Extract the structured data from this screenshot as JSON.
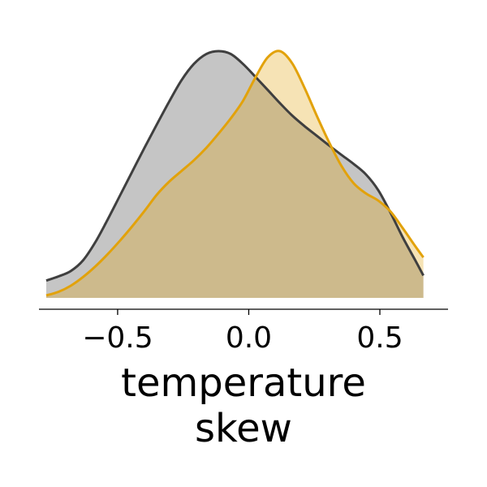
{
  "chart_data": {
    "type": "area",
    "title": "",
    "xlabel_lines": [
      "temperature",
      "skew"
    ],
    "ylabel": "",
    "xlim": [
      -0.8,
      0.76
    ],
    "ylim": [
      0,
      1.0
    ],
    "xticks": [
      -0.5,
      0.0,
      0.5
    ],
    "xtick_labels": [
      "−0.5",
      "0.0",
      "0.5"
    ],
    "grid": false,
    "legend": "none",
    "series": [
      {
        "color": "#3f3f3f",
        "fill": "#c6c6c6",
        "points": [
          [
            -0.7722,
            0.0701
          ],
          [
            -0.7253,
            0.0872
          ],
          [
            -0.6784,
            0.1091
          ],
          [
            -0.6315,
            0.1526
          ],
          [
            -0.5846,
            0.2265
          ],
          [
            -0.5377,
            0.3182
          ],
          [
            -0.4908,
            0.4153
          ],
          [
            -0.4439,
            0.5127
          ],
          [
            -0.397,
            0.6095
          ],
          [
            -0.3501,
            0.7036
          ],
          [
            -0.3032,
            0.7959
          ],
          [
            -0.2563,
            0.8822
          ],
          [
            -0.2094,
            0.9479
          ],
          [
            -0.1625,
            0.988
          ],
          [
            -0.1156,
            1.0
          ],
          [
            -0.0687,
            0.9885
          ],
          [
            -0.0218,
            0.948
          ],
          [
            0.0251,
            0.8963
          ],
          [
            0.072,
            0.8432
          ],
          [
            0.1189,
            0.7893
          ],
          [
            0.1658,
            0.7388
          ],
          [
            0.2127,
            0.696
          ],
          [
            0.2596,
            0.6569
          ],
          [
            0.3065,
            0.6176
          ],
          [
            0.3534,
            0.5797
          ],
          [
            0.4003,
            0.5425
          ],
          [
            0.4472,
            0.5
          ],
          [
            0.4941,
            0.4362
          ],
          [
            0.541,
            0.3443
          ],
          [
            0.5879,
            0.244
          ],
          [
            0.6348,
            0.1528
          ],
          [
            0.666,
            0.0906
          ]
        ]
      },
      {
        "color": "#e2a20b",
        "fill": "#f6e2ae",
        "points": [
          [
            -0.7722,
            0.01
          ],
          [
            -0.7253,
            0.0247
          ],
          [
            -0.6784,
            0.0494
          ],
          [
            -0.6315,
            0.0848
          ],
          [
            -0.5846,
            0.1278
          ],
          [
            -0.5377,
            0.1775
          ],
          [
            -0.4908,
            0.2321
          ],
          [
            -0.4439,
            0.2907
          ],
          [
            -0.397,
            0.353
          ],
          [
            -0.3501,
            0.4186
          ],
          [
            -0.3032,
            0.4712
          ],
          [
            -0.2563,
            0.5143
          ],
          [
            -0.2094,
            0.5573
          ],
          [
            -0.1625,
            0.6071
          ],
          [
            -0.1156,
            0.6652
          ],
          [
            -0.0687,
            0.7273
          ],
          [
            -0.0218,
            0.7986
          ],
          [
            0.0251,
            0.8923
          ],
          [
            0.072,
            0.9744
          ],
          [
            0.1189,
            1.0
          ],
          [
            0.1658,
            0.9505
          ],
          [
            0.2127,
            0.8512
          ],
          [
            0.2596,
            0.7376
          ],
          [
            0.3065,
            0.6303
          ],
          [
            0.3534,
            0.5349
          ],
          [
            0.4003,
            0.4642
          ],
          [
            0.4472,
            0.423
          ],
          [
            0.4941,
            0.394
          ],
          [
            0.541,
            0.3495
          ],
          [
            0.5879,
            0.2815
          ],
          [
            0.6348,
            0.2096
          ],
          [
            0.666,
            0.1639
          ]
        ]
      }
    ]
  }
}
